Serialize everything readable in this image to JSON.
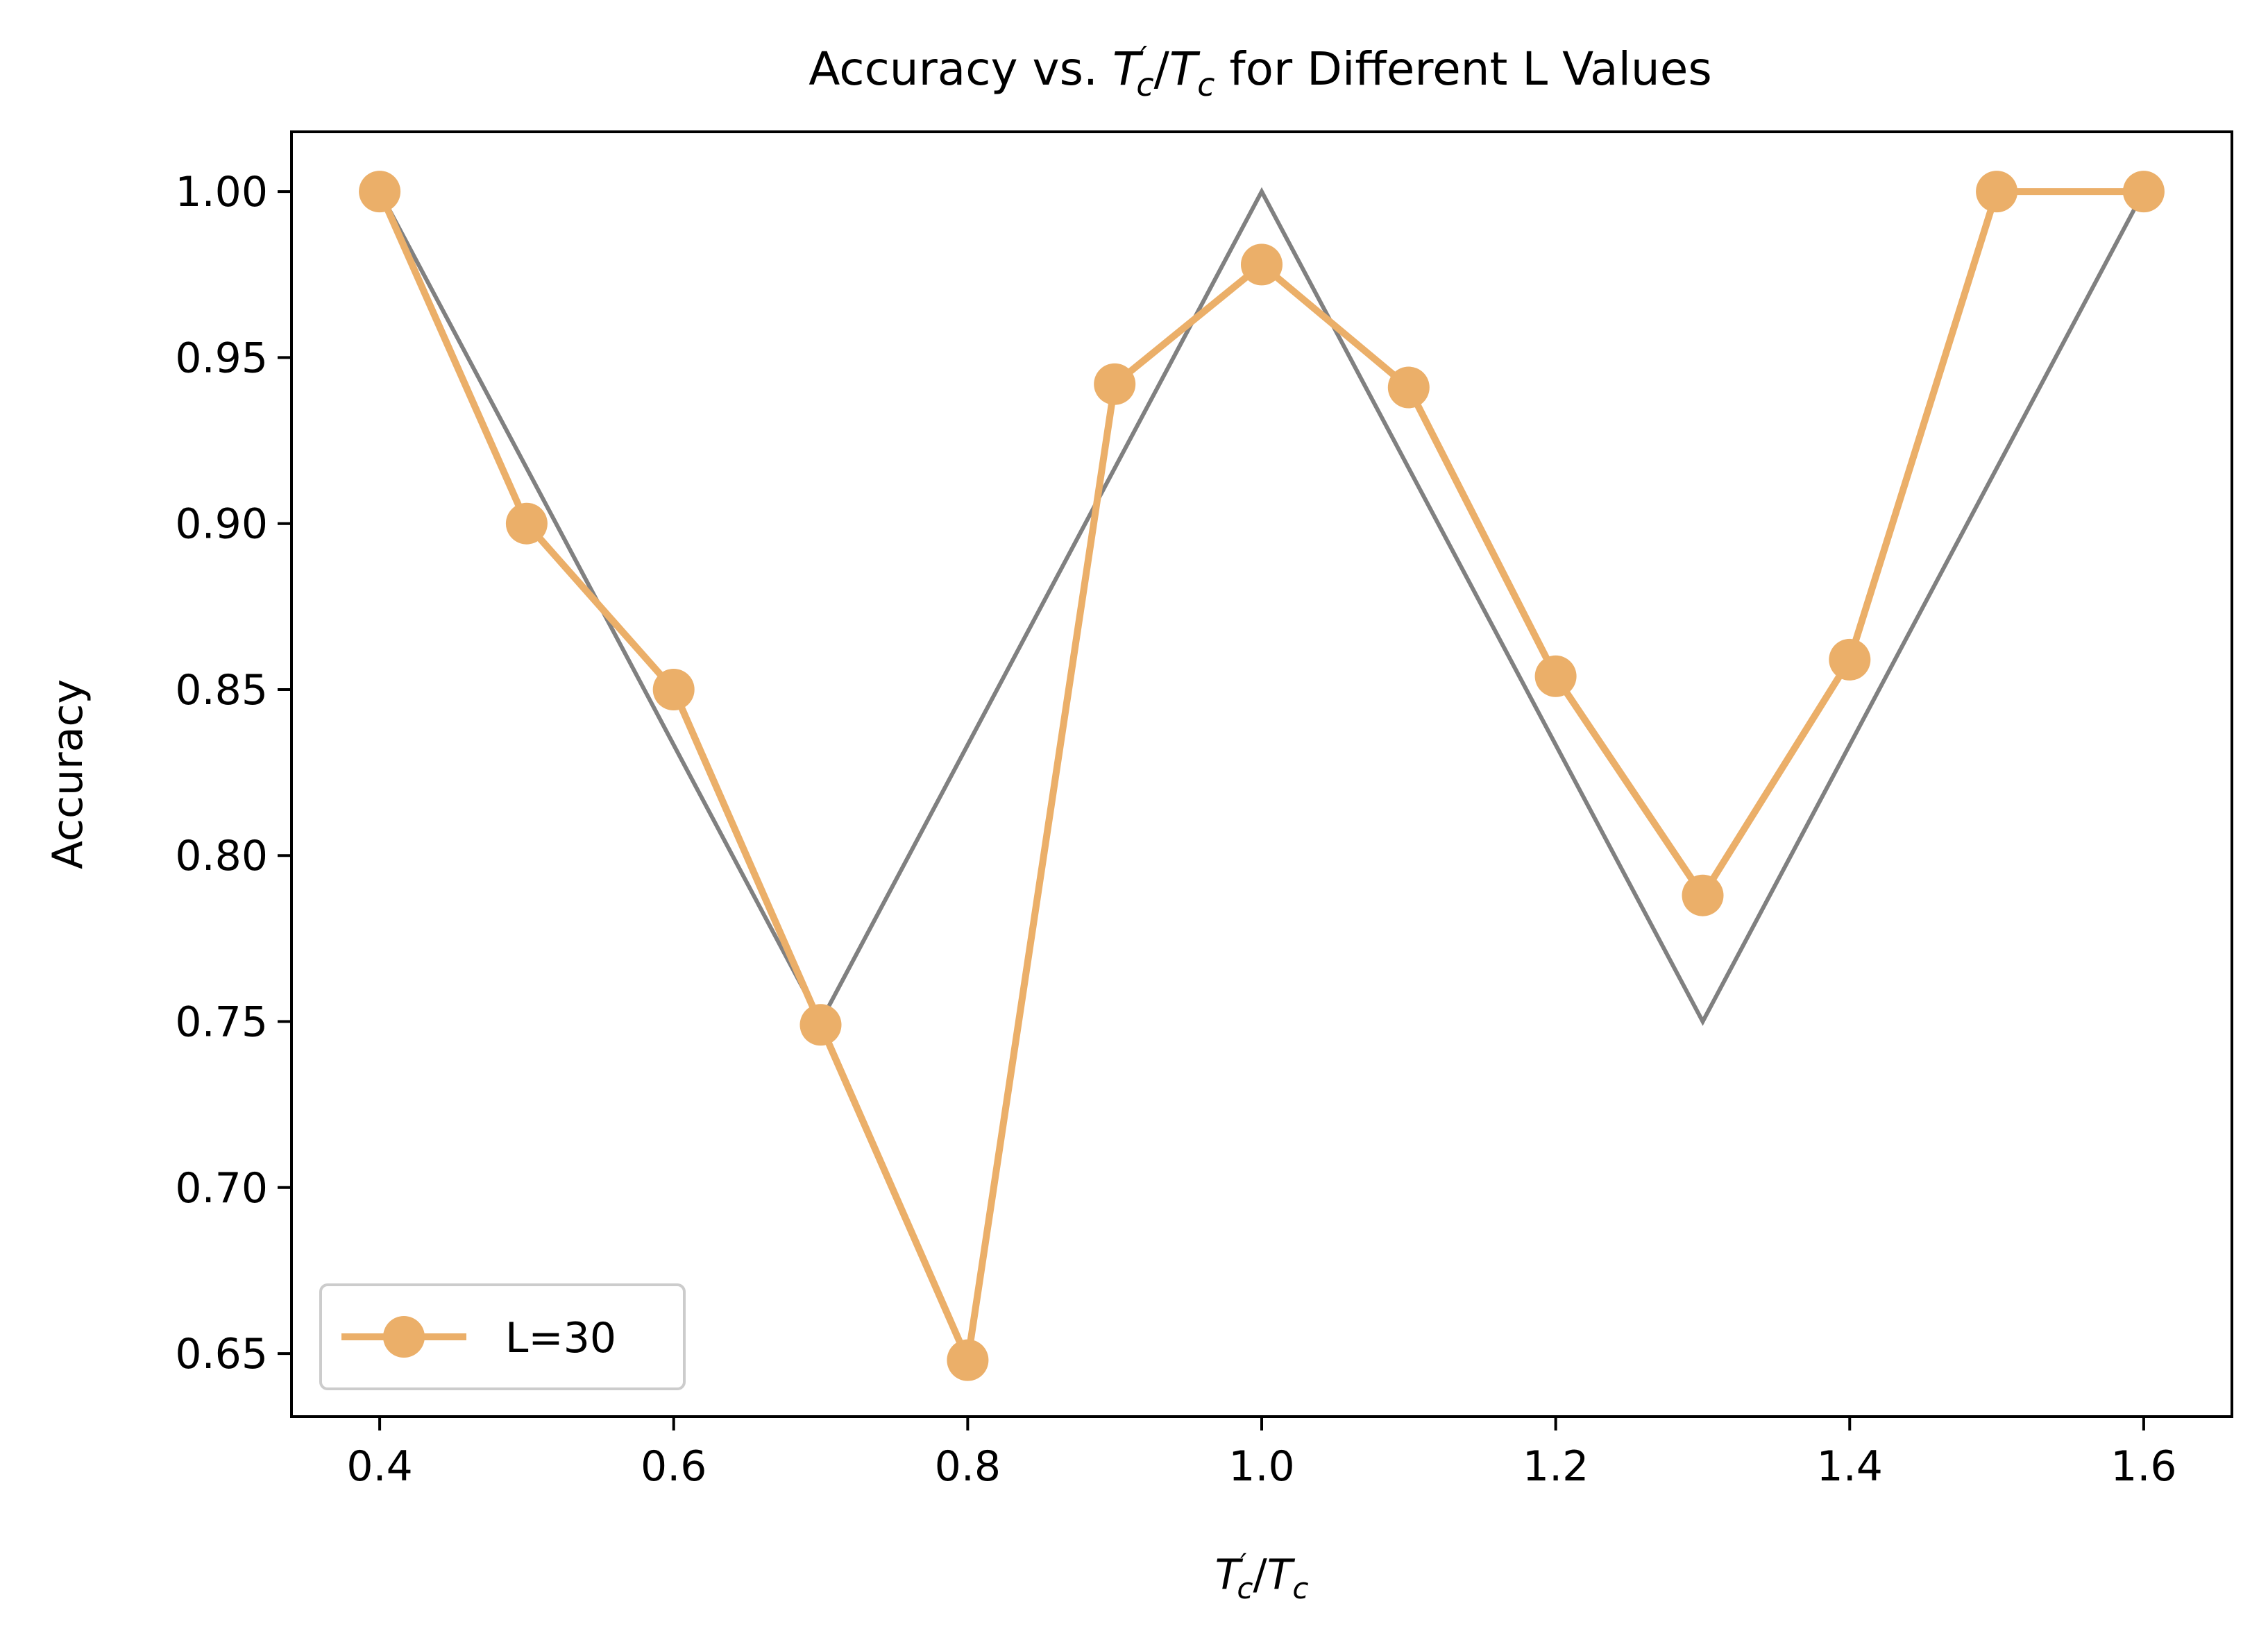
{
  "chart_data": {
    "type": "line",
    "title": {
      "prefix": "Accuracy vs. ",
      "suffix": " for Different L Values"
    },
    "xlabel": {
      "var": "T",
      "prime": "′",
      "sub": "c",
      "slash": "/"
    },
    "ylabel": "Accuracy",
    "xlim": [
      0.34,
      1.66
    ],
    "ylim": [
      0.631,
      1.018
    ],
    "xticks": [
      0.4,
      0.6,
      0.8,
      1.0,
      1.2,
      1.4,
      1.6
    ],
    "xtick_labels": [
      "0.4",
      "0.6",
      "0.8",
      "1.0",
      "1.2",
      "1.4",
      "1.6"
    ],
    "yticks": [
      0.65,
      0.7,
      0.75,
      0.8,
      0.85,
      0.9,
      0.95,
      1.0
    ],
    "ytick_labels": [
      "0.65",
      "0.70",
      "0.75",
      "0.80",
      "0.85",
      "0.90",
      "0.95",
      "1.00"
    ],
    "grid": false,
    "legend_position": "lower-left",
    "series": [
      {
        "name": "",
        "role": "reference",
        "color": "#808080",
        "markers": false,
        "x": [
          0.4,
          0.7,
          1.0,
          1.3,
          1.6
        ],
        "y": [
          1.0,
          0.75,
          1.0,
          0.75,
          1.0
        ]
      },
      {
        "name": "L=30",
        "color": "#EBAF69",
        "markers": true,
        "x": [
          0.4,
          0.5,
          0.6,
          0.7,
          0.8,
          0.9,
          1.0,
          1.1,
          1.2,
          1.3,
          1.4,
          1.5,
          1.6
        ],
        "y": [
          1.0,
          0.9,
          0.85,
          0.749,
          0.648,
          0.942,
          0.978,
          0.941,
          0.854,
          0.788,
          0.859,
          1.0,
          1.0
        ]
      }
    ]
  }
}
